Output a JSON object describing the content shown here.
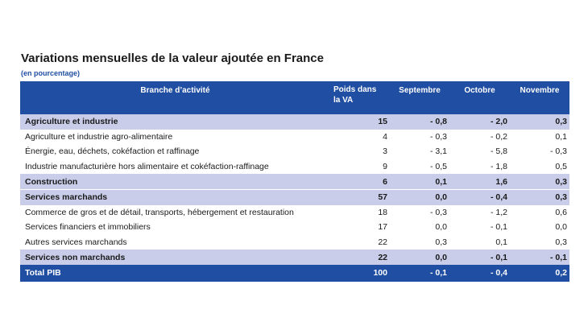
{
  "title": "Variations mensuelles de la valeur ajoutée en France",
  "subtitle": "(en pourcentage)",
  "headers": {
    "branch": "Branche d’activité",
    "poids_line1": "Poids dans",
    "poids_line2": "la VA",
    "sep": "Septembre",
    "oct": "Octobre",
    "nov": "Novembre"
  },
  "rows": [
    {
      "label": "Agriculture et industrie",
      "poids": "15",
      "sep": "- 0,8",
      "oct": "- 2,0",
      "nov": "0,3"
    },
    {
      "label": "Agriculture et industrie agro-alimentaire",
      "poids": "4",
      "sep": "- 0,3",
      "oct": "- 0,2",
      "nov": "0,1"
    },
    {
      "label": "Énergie, eau, déchets, cokéfaction et raffinage",
      "poids": "3",
      "sep": "- 3,1",
      "oct": "- 5,8",
      "nov": "- 0,3"
    },
    {
      "label": "Industrie manufacturière hors alimentaire et cokéfaction-raffinage",
      "poids": "9",
      "sep": "- 0,5",
      "oct": "- 1,8",
      "nov": "0,5"
    },
    {
      "label": "Construction",
      "poids": "6",
      "sep": "0,1",
      "oct": "1,6",
      "nov": "0,3"
    },
    {
      "label": "Services marchands",
      "poids": "57",
      "sep": "0,0",
      "oct": "- 0,4",
      "nov": "0,3"
    },
    {
      "label": "Commerce de gros et de détail, transports, hébergement et restauration",
      "poids": "18",
      "sep": "- 0,3",
      "oct": "- 1,2",
      "nov": "0,6"
    },
    {
      "label": "Services financiers et immobiliers",
      "poids": "17",
      "sep": "0,0",
      "oct": "- 0,1",
      "nov": "0,0"
    },
    {
      "label": "Autres services marchands",
      "poids": "22",
      "sep": "0,3",
      "oct": "0,1",
      "nov": "0,3"
    },
    {
      "label": "Services non marchands",
      "poids": "22",
      "sep": "0,0",
      "oct": "- 0,1",
      "nov": "- 0,1"
    },
    {
      "label": "Total PIB",
      "poids": "100",
      "sep": "- 0,1",
      "oct": "- 0,4",
      "nov": "0,2"
    }
  ],
  "colors": {
    "header_blue": "#1f4ea3",
    "category_band": "#c9cde9"
  }
}
